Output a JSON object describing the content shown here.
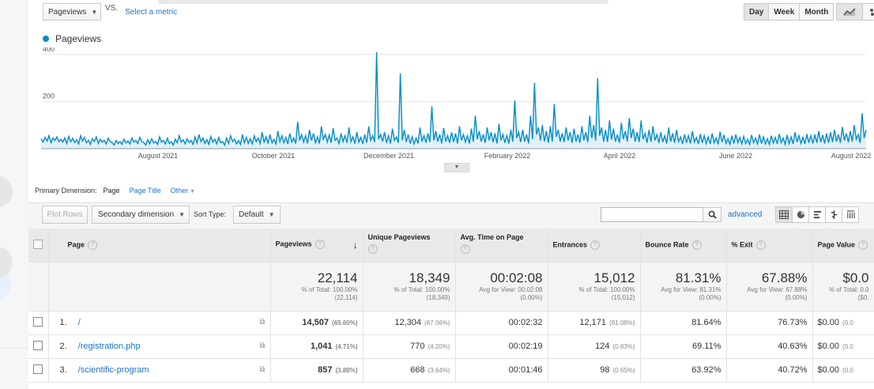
{
  "header": {
    "metric_select": "Pageviews",
    "vs_label": "VS.",
    "select_metric": "Select a metric",
    "granularity": [
      "Day",
      "Week",
      "Month"
    ],
    "active_granularity": "Day"
  },
  "chart_data": {
    "type": "line",
    "legend": "Pageviews",
    "y_ticks": [
      "400",
      "200"
    ],
    "ylim": [
      0,
      430
    ],
    "x_ticks": [
      "August 2021",
      "October 2021",
      "December 2021",
      "February 2022",
      "April 2022",
      "June 2022",
      "August 2022"
    ],
    "color": "#058dc7",
    "series": [
      {
        "name": "Pageviews",
        "values": [
          42,
          28,
          48,
          32,
          55,
          25,
          45,
          35,
          50,
          30,
          40,
          28,
          46,
          22,
          52,
          30,
          44,
          26,
          38,
          20,
          55,
          32,
          48,
          25,
          36,
          18,
          42,
          30,
          50,
          22,
          40,
          28,
          35,
          20,
          45,
          30,
          25,
          15,
          35,
          22,
          30,
          18,
          40,
          25,
          33,
          20,
          45,
          28,
          35,
          22,
          48,
          30,
          26,
          15,
          38,
          20,
          42,
          25,
          30,
          18,
          50,
          28,
          35,
          20,
          44,
          22,
          30,
          15,
          40,
          25,
          55,
          28,
          38,
          20,
          42,
          26,
          35,
          18,
          50,
          24,
          60,
          30,
          45,
          22,
          38,
          18,
          52,
          28,
          40,
          20,
          48,
          25,
          30,
          15,
          45,
          22,
          55,
          30,
          40,
          20,
          35,
          18,
          60,
          25,
          48,
          22,
          42,
          20,
          55,
          30,
          45,
          22,
          70,
          28,
          50,
          22,
          60,
          25,
          40,
          20,
          75,
          30,
          55,
          25,
          48,
          20,
          65,
          28,
          45,
          22,
          115,
          35,
          60,
          28,
          55,
          22,
          80,
          35,
          65,
          25,
          50,
          22,
          95,
          40,
          60,
          28,
          58,
          25,
          88,
          35,
          45,
          22,
          65,
          30,
          55,
          25,
          90,
          30,
          50,
          22,
          70,
          28,
          48,
          20,
          60,
          25,
          95,
          35,
          55,
          28,
          410,
          40,
          60,
          30,
          70,
          25,
          55,
          22,
          85,
          35,
          50,
          25,
          320,
          35,
          80,
          28,
          60,
          22,
          50,
          20,
          45,
          22,
          90,
          30,
          55,
          25,
          65,
          28,
          180,
          35,
          75,
          30,
          60,
          22,
          88,
          30,
          55,
          25,
          70,
          28,
          65,
          22,
          95,
          35,
          60,
          28,
          55,
          22,
          85,
          30,
          140,
          40,
          75,
          30,
          60,
          25,
          90,
          35,
          70,
          28,
          65,
          22,
          105,
          35,
          60,
          25,
          55,
          22,
          80,
          30,
          205,
          45,
          70,
          28,
          80,
          30,
          60,
          22,
          140,
          40,
          280,
          60,
          90,
          35,
          100,
          30,
          75,
          25,
          95,
          30,
          190,
          50,
          80,
          30,
          65,
          28,
          90,
          35,
          70,
          25,
          85,
          30,
          60,
          25,
          95,
          35,
          70,
          28,
          140,
          45,
          100,
          35,
          300,
          55,
          90,
          30,
          80,
          28,
          120,
          38,
          85,
          30,
          60,
          25,
          110,
          40,
          75,
          30,
          130,
          45,
          85,
          30,
          70,
          28,
          120,
          40,
          65,
          25,
          80,
          30,
          95,
          35,
          60,
          25,
          70,
          28,
          55,
          22,
          90,
          30,
          65,
          25,
          80,
          30,
          50,
          20,
          60,
          25,
          55,
          22,
          75,
          28,
          48,
          20,
          62,
          25,
          55,
          22,
          50,
          20,
          65,
          25,
          45,
          18,
          72,
          28,
          58,
          22,
          42,
          18,
          55,
          22,
          60,
          25,
          48,
          20,
          52,
          22,
          40,
          18,
          58,
          25,
          45,
          20,
          60,
          22,
          50,
          20,
          42,
          18,
          55,
          25,
          48,
          20,
          62,
          25,
          45,
          18,
          58,
          22,
          50,
          20,
          70,
          28,
          55,
          22,
          48,
          20,
          62,
          25,
          55,
          22,
          60,
          25,
          75,
          28,
          58,
          22,
          65,
          25,
          70,
          28,
          80,
          30,
          60,
          25,
          92,
          35,
          65,
          28,
          75,
          30,
          100,
          40,
          60,
          25,
          150,
          45,
          80
        ]
      }
    ]
  },
  "dimension_bar": {
    "label": "Primary Dimension:",
    "options": [
      "Page",
      "Page Title",
      "Other"
    ],
    "active": "Page"
  },
  "toolbar": {
    "plot_rows": "Plot Rows",
    "secondary_dimension": "Secondary dimension",
    "sort_type_label": "Sort Type:",
    "sort_type_value": "Default",
    "search_placeholder": "",
    "advanced": "advanced"
  },
  "table": {
    "columns": [
      "Page",
      "Pageviews",
      "Unique Pageviews",
      "Avg. Time on Page",
      "Entrances",
      "Bounce Rate",
      "% Exit",
      "Page Value"
    ],
    "totals": [
      {
        "value": "22,114",
        "sub1": "% of Total: 100.00%",
        "sub2": "(22,114)"
      },
      {
        "value": "18,349",
        "sub1": "% of Total: 100.00%",
        "sub2": "(18,349)"
      },
      {
        "value": "00:02:08",
        "sub1": "Avg for View: 00:02:08",
        "sub2": "(0.00%)"
      },
      {
        "value": "15,012",
        "sub1": "% of Total: 100.00%",
        "sub2": "(15,012)"
      },
      {
        "value": "81.31%",
        "sub1": "Avg for View: 81.31%",
        "sub2": "(0.00%)"
      },
      {
        "value": "67.88%",
        "sub1": "Avg for View: 67.88%",
        "sub2": "(0.00%)"
      },
      {
        "value": "$0.0",
        "sub1": "% of Total: 0.0",
        "sub2": "($0."
      }
    ],
    "rows": [
      {
        "num": "1.",
        "page": "/",
        "pageviews": "14,507",
        "pv_pct": "(65.60%)",
        "unique": "12,304",
        "u_pct": "(67.06%)",
        "avg_time": "00:02:32",
        "entrances": "12,171",
        "e_pct": "(81.08%)",
        "bounce": "81.64%",
        "exit": "76.73%",
        "value": "$0.00",
        "v_pct": "(0.0"
      },
      {
        "num": "2.",
        "page": "/registration.php",
        "pageviews": "1,041",
        "pv_pct": "(4.71%)",
        "unique": "770",
        "u_pct": "(4.20%)",
        "avg_time": "00:02:19",
        "entrances": "124",
        "e_pct": "(0.83%)",
        "bounce": "69.11%",
        "exit": "40.63%",
        "value": "$0.00",
        "v_pct": "(0.0"
      },
      {
        "num": "3.",
        "page": "/scientific-program",
        "pageviews": "857",
        "pv_pct": "(3.88%)",
        "unique": "668",
        "u_pct": "(3.64%)",
        "avg_time": "00:01:46",
        "entrances": "98",
        "e_pct": "(0.65%)",
        "bounce": "63.92%",
        "exit": "40.72%",
        "value": "$0.00",
        "v_pct": "(0.0"
      }
    ]
  }
}
